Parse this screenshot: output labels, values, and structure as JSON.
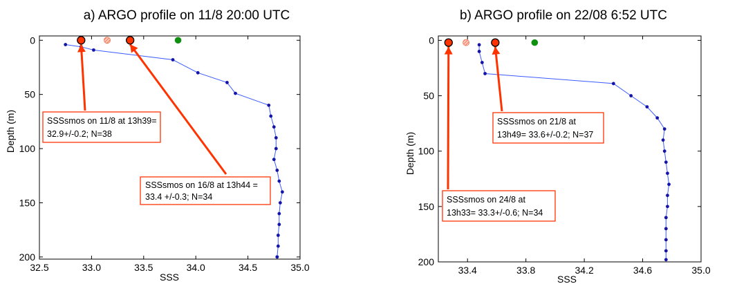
{
  "colors": {
    "profile_line": "#3b5bff",
    "profile_point": "#1414a8",
    "smos_marker": "#ff3300",
    "smos_marker_light": "#f08060",
    "reference_marker": "#109010",
    "arrow": "#ff3300",
    "annotation_border": "#ff3300",
    "axis": "#000000"
  },
  "chart_data": [
    {
      "type": "line",
      "title": "a) ARGO profile on 11/8 20:00 UTC",
      "xlabel": "SSS",
      "ylabel": "Depth (m)",
      "xlim": [
        32.5,
        35.0
      ],
      "ylim": [
        202,
        -4
      ],
      "xticks": [
        "32.5",
        "33.0",
        "33.5",
        "34.0",
        "34.5",
        "35.0"
      ],
      "yticks": [
        "0",
        "50",
        "100",
        "150",
        "200"
      ],
      "series": [
        {
          "x": [
            32.75,
            32.9,
            33.02,
            33.78,
            34.02,
            34.3,
            34.38,
            34.7,
            34.72,
            34.75,
            34.77,
            34.77,
            34.75,
            34.78,
            34.8,
            34.83,
            34.81,
            34.8,
            34.8,
            34.79,
            34.79,
            34.78,
            34.78
          ],
          "y": [
            4,
            6,
            9,
            18,
            30,
            39,
            49,
            60,
            70,
            80,
            90,
            100,
            110,
            120,
            130,
            140,
            150,
            160,
            170,
            180,
            190,
            200,
            200
          ]
        }
      ],
      "smos_points": [
        {
          "x": 32.9,
          "y": 0,
          "style": "solid"
        },
        {
          "x": 33.15,
          "y": 0,
          "style": "hatched"
        },
        {
          "x": 33.37,
          "y": 0,
          "style": "solid"
        },
        {
          "x": 33.83,
          "y": 0,
          "style": "green"
        }
      ],
      "annotations": [
        {
          "lines": [
            "SSSsmos on 11/8 at 13h39=",
            "32.9+/-0.2; N=38"
          ],
          "target": {
            "x": 32.9,
            "y": 0
          }
        },
        {
          "lines": [
            "SSSsmos on 16/8 at 13h44 =",
            "33.4 +/-0.3; N=34"
          ],
          "target": {
            "x": 33.37,
            "y": 0
          }
        }
      ]
    },
    {
      "type": "line",
      "title": "b) ARGO profile on 22/08 6:52 UTC",
      "xlabel": "SSS",
      "ylabel": "Depth (m)",
      "xlim": [
        33.2,
        35.0
      ],
      "ylim": [
        200,
        -4
      ],
      "xticks": [
        "33.4",
        "33.8",
        "34.2",
        "34.6",
        "35.0"
      ],
      "yticks": [
        "0",
        "50",
        "100",
        "150",
        "200"
      ],
      "series": [
        {
          "x": [
            33.48,
            33.48,
            33.5,
            33.52,
            34.4,
            34.52,
            34.63,
            34.7,
            34.75,
            34.74,
            34.75,
            34.76,
            34.77,
            34.78,
            34.77,
            34.77,
            34.76,
            34.76,
            34.76,
            34.76,
            34.76
          ],
          "y": [
            4,
            10,
            20,
            30,
            39,
            50,
            60,
            70,
            80,
            90,
            100,
            110,
            120,
            130,
            140,
            150,
            160,
            170,
            180,
            190,
            198
          ]
        }
      ],
      "smos_points": [
        {
          "x": 33.27,
          "y": 2,
          "style": "solid"
        },
        {
          "x": 33.39,
          "y": 2,
          "style": "hatched"
        },
        {
          "x": 33.59,
          "y": 2,
          "style": "solid"
        },
        {
          "x": 33.86,
          "y": 2,
          "style": "green"
        }
      ],
      "annotations": [
        {
          "lines": [
            "SSSsmos on 21/8 at",
            "13h49= 33.6+/-0.2; N=37"
          ],
          "target": {
            "x": 33.59,
            "y": 2
          }
        },
        {
          "lines": [
            "SSSsmos on 24/8 at",
            "13h33= 33.3+/-0.6; N=34"
          ],
          "target": {
            "x": 33.27,
            "y": 2
          }
        }
      ]
    }
  ]
}
